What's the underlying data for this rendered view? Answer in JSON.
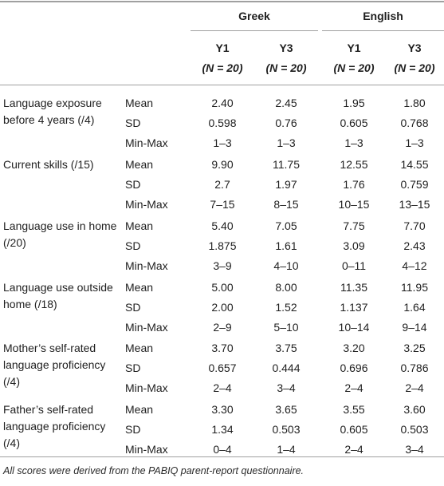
{
  "header": {
    "groups": [
      "Greek",
      "English"
    ],
    "columns": [
      {
        "year": "Y1",
        "n": "(N = 20)"
      },
      {
        "year": "Y3",
        "n": "(N = 20)"
      },
      {
        "year": "Y1",
        "n": "(N = 20)"
      },
      {
        "year": "Y3",
        "n": "(N = 20)"
      }
    ]
  },
  "sections": [
    {
      "label": "Language exposure before 4 years (/4)",
      "rows": [
        {
          "stat": "Mean",
          "values": [
            "2.40",
            "2.45",
            "1.95",
            "1.80"
          ]
        },
        {
          "stat": "SD",
          "values": [
            "0.598",
            "0.76",
            "0.605",
            "0.768"
          ]
        },
        {
          "stat": "Min-Max",
          "values": [
            "1–3",
            "1–3",
            "1–3",
            "1–3"
          ]
        }
      ]
    },
    {
      "label": "Current skills (/15)",
      "rows": [
        {
          "stat": "Mean",
          "values": [
            "9.90",
            "11.75",
            "12.55",
            "14.55"
          ]
        },
        {
          "stat": "SD",
          "values": [
            "2.7",
            "1.97",
            "1.76",
            "0.759"
          ]
        },
        {
          "stat": "Min-Max",
          "values": [
            "7–15",
            "8–15",
            "10–15",
            "13–15"
          ]
        }
      ]
    },
    {
      "label": "Language use in home (/20)",
      "rows": [
        {
          "stat": "Mean",
          "values": [
            "5.40",
            "7.05",
            "7.75",
            "7.70"
          ]
        },
        {
          "stat": "SD",
          "values": [
            "1.875",
            "1.61",
            "3.09",
            "2.43"
          ]
        },
        {
          "stat": "Min-Max",
          "values": [
            "3–9",
            "4–10",
            "0–11",
            "4–12"
          ]
        }
      ]
    },
    {
      "label": "Language use outside home (/18)",
      "rows": [
        {
          "stat": "Mean",
          "values": [
            "5.00",
            "8.00",
            "11.35",
            "11.95"
          ]
        },
        {
          "stat": "SD",
          "values": [
            "2.00",
            "1.52",
            "1.137",
            "1.64"
          ]
        },
        {
          "stat": "Min-Max",
          "values": [
            "2–9",
            "5–10",
            "10–14",
            "9–14"
          ]
        }
      ]
    },
    {
      "label": "Mother’s self-rated language proficiency (/4)",
      "rows": [
        {
          "stat": "Mean",
          "values": [
            "3.70",
            "3.75",
            "3.20",
            "3.25"
          ]
        },
        {
          "stat": "SD",
          "values": [
            "0.657",
            "0.444",
            "0.696",
            "0.786"
          ]
        },
        {
          "stat": "Min-Max",
          "values": [
            "2–4",
            "3–4",
            "2–4",
            "2–4"
          ]
        }
      ]
    },
    {
      "label": "Father’s self-rated language proficiency (/4)",
      "rows": [
        {
          "stat": "Mean",
          "values": [
            "3.30",
            "3.65",
            "3.55",
            "3.60"
          ]
        },
        {
          "stat": "SD",
          "values": [
            "1.34",
            "0.503",
            "0.605",
            "0.503"
          ]
        },
        {
          "stat": "Min-Max",
          "values": [
            "0–4",
            "1–4",
            "2–4",
            "3–4"
          ]
        }
      ]
    }
  ],
  "footnote": "All scores were derived from the PABIQ parent-report questionnaire."
}
